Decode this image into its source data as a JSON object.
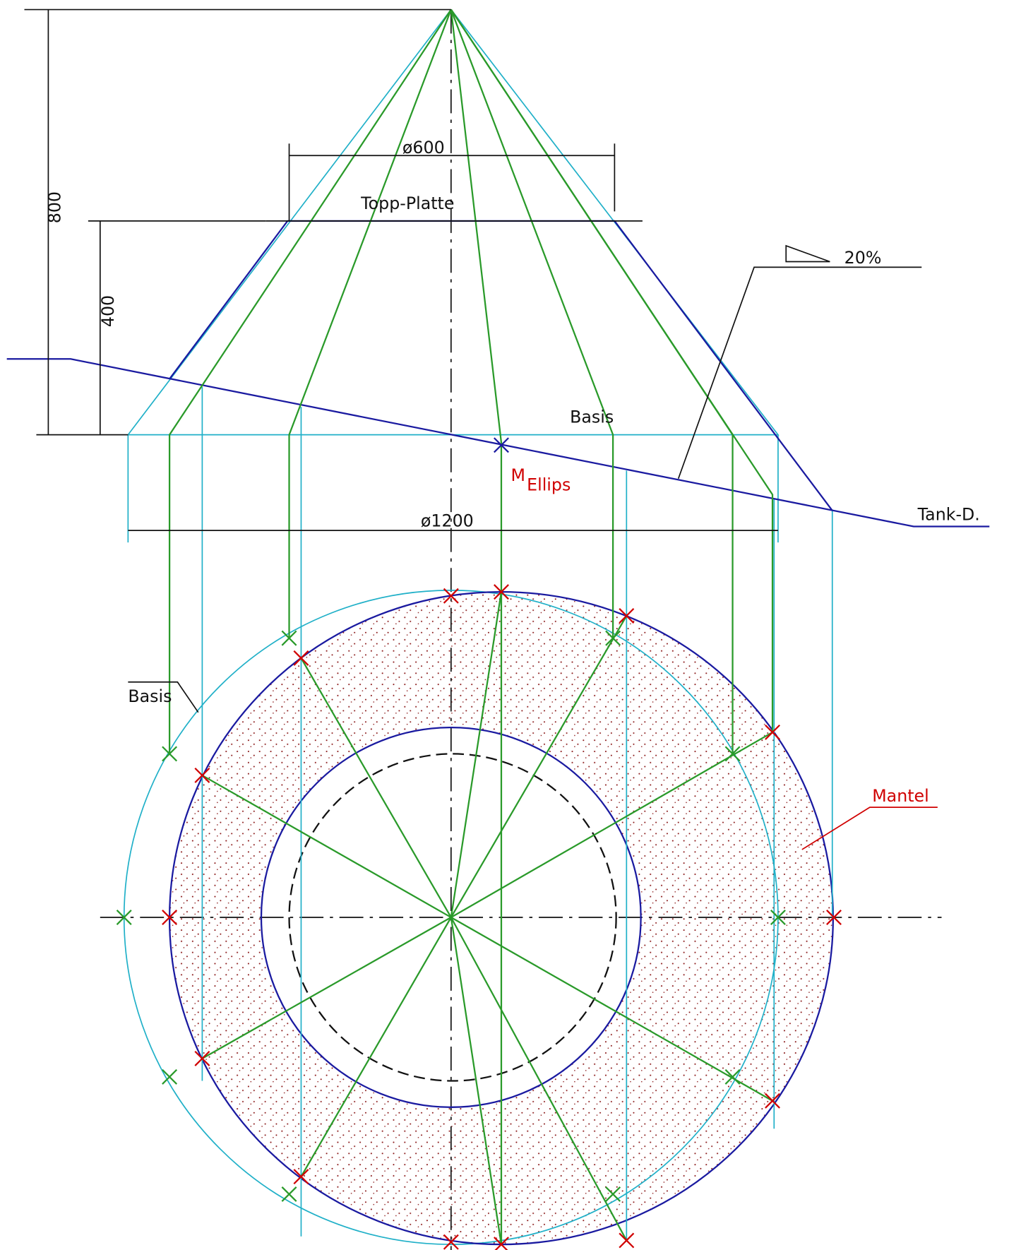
{
  "dimensions": {
    "height_total": "800",
    "height_top": "400",
    "diameter_top": "ø600",
    "diameter_base": "ø1200",
    "slope": "20%"
  },
  "labels": {
    "top_plate": "Topp-Platte",
    "base_side": "Basis",
    "center_m": "M",
    "center_sub": "Ellips",
    "tank": "Tank-D.",
    "base_plan": "Basis",
    "mantle": "Mantel"
  }
}
